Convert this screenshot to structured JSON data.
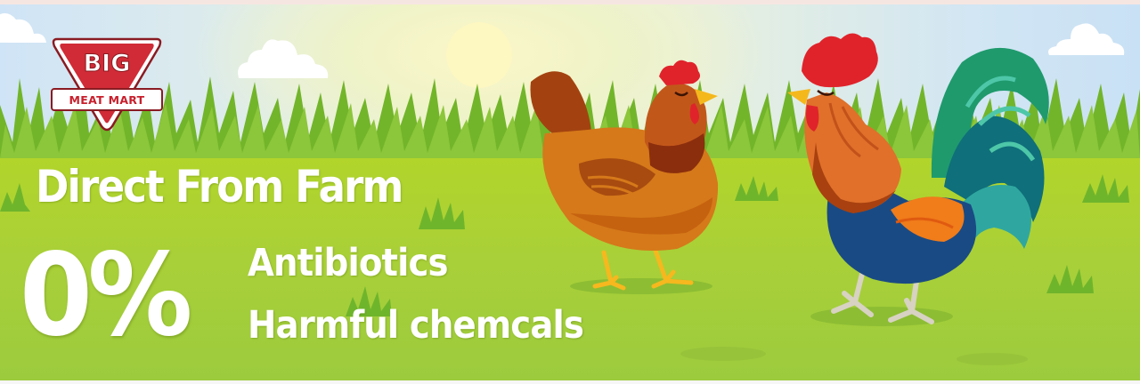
{
  "logo": {
    "top_text": "BIG",
    "bottom_text": "MEAT MART"
  },
  "headline": "Direct From Farm",
  "percent": "0%",
  "claims": [
    "Antibiotics",
    "Harmful chemcals"
  ],
  "colors": {
    "sky": "#cfe4f6",
    "grass": "#b2d52a",
    "logo_red": "#c8202d",
    "text": "#ffffff"
  }
}
